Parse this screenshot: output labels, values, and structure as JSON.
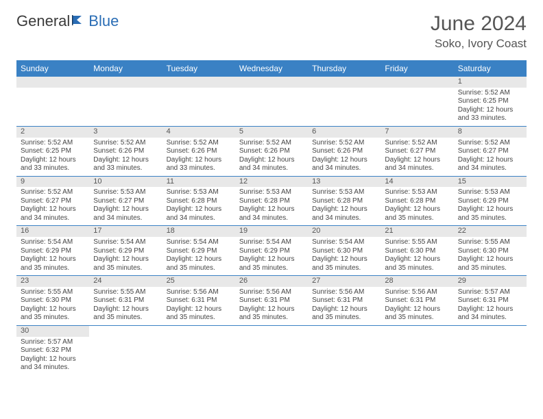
{
  "brand": {
    "part1": "General",
    "part2": "Blue"
  },
  "header": {
    "title": "June 2024",
    "location": "Soko, Ivory Coast"
  },
  "style": {
    "header_bg": "#3a81c4",
    "header_fg": "#ffffff",
    "daynum_bg": "#e8e8e8",
    "cell_border": "#3a81c4",
    "title_color": "#555555",
    "body_text_color": "#444444",
    "brand_blue": "#2a6db5",
    "title_fontsize": 30,
    "location_fontsize": 17,
    "header_fontsize": 12,
    "cell_fontsize": 10
  },
  "weekdays": [
    "Sunday",
    "Monday",
    "Tuesday",
    "Wednesday",
    "Thursday",
    "Friday",
    "Saturday"
  ],
  "weeks": [
    [
      null,
      null,
      null,
      null,
      null,
      null,
      {
        "n": "1",
        "sr": "Sunrise: 5:52 AM",
        "ss": "Sunset: 6:25 PM",
        "dl": "Daylight: 12 hours and 33 minutes."
      }
    ],
    [
      {
        "n": "2",
        "sr": "Sunrise: 5:52 AM",
        "ss": "Sunset: 6:25 PM",
        "dl": "Daylight: 12 hours and 33 minutes."
      },
      {
        "n": "3",
        "sr": "Sunrise: 5:52 AM",
        "ss": "Sunset: 6:26 PM",
        "dl": "Daylight: 12 hours and 33 minutes."
      },
      {
        "n": "4",
        "sr": "Sunrise: 5:52 AM",
        "ss": "Sunset: 6:26 PM",
        "dl": "Daylight: 12 hours and 33 minutes."
      },
      {
        "n": "5",
        "sr": "Sunrise: 5:52 AM",
        "ss": "Sunset: 6:26 PM",
        "dl": "Daylight: 12 hours and 34 minutes."
      },
      {
        "n": "6",
        "sr": "Sunrise: 5:52 AM",
        "ss": "Sunset: 6:26 PM",
        "dl": "Daylight: 12 hours and 34 minutes."
      },
      {
        "n": "7",
        "sr": "Sunrise: 5:52 AM",
        "ss": "Sunset: 6:27 PM",
        "dl": "Daylight: 12 hours and 34 minutes."
      },
      {
        "n": "8",
        "sr": "Sunrise: 5:52 AM",
        "ss": "Sunset: 6:27 PM",
        "dl": "Daylight: 12 hours and 34 minutes."
      }
    ],
    [
      {
        "n": "9",
        "sr": "Sunrise: 5:52 AM",
        "ss": "Sunset: 6:27 PM",
        "dl": "Daylight: 12 hours and 34 minutes."
      },
      {
        "n": "10",
        "sr": "Sunrise: 5:53 AM",
        "ss": "Sunset: 6:27 PM",
        "dl": "Daylight: 12 hours and 34 minutes."
      },
      {
        "n": "11",
        "sr": "Sunrise: 5:53 AM",
        "ss": "Sunset: 6:28 PM",
        "dl": "Daylight: 12 hours and 34 minutes."
      },
      {
        "n": "12",
        "sr": "Sunrise: 5:53 AM",
        "ss": "Sunset: 6:28 PM",
        "dl": "Daylight: 12 hours and 34 minutes."
      },
      {
        "n": "13",
        "sr": "Sunrise: 5:53 AM",
        "ss": "Sunset: 6:28 PM",
        "dl": "Daylight: 12 hours and 34 minutes."
      },
      {
        "n": "14",
        "sr": "Sunrise: 5:53 AM",
        "ss": "Sunset: 6:28 PM",
        "dl": "Daylight: 12 hours and 35 minutes."
      },
      {
        "n": "15",
        "sr": "Sunrise: 5:53 AM",
        "ss": "Sunset: 6:29 PM",
        "dl": "Daylight: 12 hours and 35 minutes."
      }
    ],
    [
      {
        "n": "16",
        "sr": "Sunrise: 5:54 AM",
        "ss": "Sunset: 6:29 PM",
        "dl": "Daylight: 12 hours and 35 minutes."
      },
      {
        "n": "17",
        "sr": "Sunrise: 5:54 AM",
        "ss": "Sunset: 6:29 PM",
        "dl": "Daylight: 12 hours and 35 minutes."
      },
      {
        "n": "18",
        "sr": "Sunrise: 5:54 AM",
        "ss": "Sunset: 6:29 PM",
        "dl": "Daylight: 12 hours and 35 minutes."
      },
      {
        "n": "19",
        "sr": "Sunrise: 5:54 AM",
        "ss": "Sunset: 6:29 PM",
        "dl": "Daylight: 12 hours and 35 minutes."
      },
      {
        "n": "20",
        "sr": "Sunrise: 5:54 AM",
        "ss": "Sunset: 6:30 PM",
        "dl": "Daylight: 12 hours and 35 minutes."
      },
      {
        "n": "21",
        "sr": "Sunrise: 5:55 AM",
        "ss": "Sunset: 6:30 PM",
        "dl": "Daylight: 12 hours and 35 minutes."
      },
      {
        "n": "22",
        "sr": "Sunrise: 5:55 AM",
        "ss": "Sunset: 6:30 PM",
        "dl": "Daylight: 12 hours and 35 minutes."
      }
    ],
    [
      {
        "n": "23",
        "sr": "Sunrise: 5:55 AM",
        "ss": "Sunset: 6:30 PM",
        "dl": "Daylight: 12 hours and 35 minutes."
      },
      {
        "n": "24",
        "sr": "Sunrise: 5:55 AM",
        "ss": "Sunset: 6:31 PM",
        "dl": "Daylight: 12 hours and 35 minutes."
      },
      {
        "n": "25",
        "sr": "Sunrise: 5:56 AM",
        "ss": "Sunset: 6:31 PM",
        "dl": "Daylight: 12 hours and 35 minutes."
      },
      {
        "n": "26",
        "sr": "Sunrise: 5:56 AM",
        "ss": "Sunset: 6:31 PM",
        "dl": "Daylight: 12 hours and 35 minutes."
      },
      {
        "n": "27",
        "sr": "Sunrise: 5:56 AM",
        "ss": "Sunset: 6:31 PM",
        "dl": "Daylight: 12 hours and 35 minutes."
      },
      {
        "n": "28",
        "sr": "Sunrise: 5:56 AM",
        "ss": "Sunset: 6:31 PM",
        "dl": "Daylight: 12 hours and 35 minutes."
      },
      {
        "n": "29",
        "sr": "Sunrise: 5:57 AM",
        "ss": "Sunset: 6:31 PM",
        "dl": "Daylight: 12 hours and 34 minutes."
      }
    ],
    [
      {
        "n": "30",
        "sr": "Sunrise: 5:57 AM",
        "ss": "Sunset: 6:32 PM",
        "dl": "Daylight: 12 hours and 34 minutes."
      },
      null,
      null,
      null,
      null,
      null,
      null
    ]
  ]
}
